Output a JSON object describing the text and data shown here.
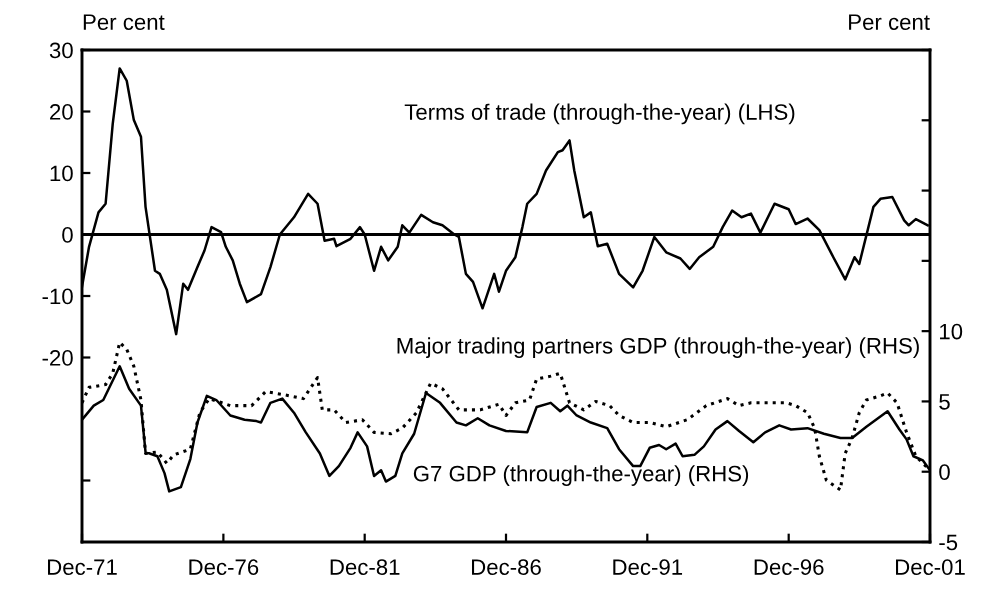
{
  "chart_data": {
    "type": "line",
    "ylabel": "Per cent",
    "y2label": "Per cent",
    "xlim": [
      "1971-12",
      "2001-12"
    ],
    "xticks": [
      {
        "value": "1971-12",
        "label": "Dec-71"
      },
      {
        "value": "1976-12",
        "label": "Dec-76"
      },
      {
        "value": "1981-12",
        "label": "Dec-81"
      },
      {
        "value": "1986-12",
        "label": "Dec-86"
      },
      {
        "value": "1991-12",
        "label": "Dec-91"
      },
      {
        "value": "1996-12",
        "label": "Dec-96"
      },
      {
        "value": "2001-12",
        "label": "Dec-01"
      }
    ],
    "ylim": [
      -50,
      30
    ],
    "yticks": [
      30,
      20,
      10,
      0,
      -10,
      -20,
      {
        "value": -40,
        "label": null
      }
    ],
    "y2lim": [
      -5,
      30
    ],
    "y2ticks": [
      {
        "value": 30,
        "label": null
      },
      {
        "value": 25,
        "label": null
      },
      {
        "value": 20,
        "label": null
      },
      {
        "value": 15,
        "label": null
      },
      10,
      5,
      0,
      -5
    ],
    "ref_lines": [
      {
        "axis": "y",
        "value": 0,
        "color": "#000000"
      }
    ],
    "legend": false,
    "grid": false,
    "series": [
      {
        "name": "Terms of trade (through-the-year) (LHS)",
        "color": "#000000",
        "line_style": "solid",
        "x": [
          "1971-12",
          "1972-03",
          "1972-07",
          "1972-10",
          "1973-01",
          "1973-04",
          "1973-07",
          "1973-10",
          "1974-01",
          "1974-03",
          "1974-07",
          "1974-09",
          "1974-12",
          "1975-04",
          "1975-07",
          "1975-09",
          "1976-01",
          "1976-04",
          "1976-07",
          "1976-11",
          "1977-01",
          "1977-04",
          "1977-07",
          "1977-10",
          "1978-04",
          "1978-08",
          "1978-12",
          "1979-06",
          "1979-12",
          "1980-04",
          "1980-07",
          "1980-11",
          "1980-12",
          "1981-06",
          "1981-10",
          "1981-12",
          "1982-04",
          "1982-07",
          "1982-10",
          "1983-02",
          "1983-04",
          "1983-07",
          "1983-12",
          "1984-05",
          "1984-09",
          "1985-02",
          "1985-04",
          "1985-07",
          "1985-10",
          "1986-02",
          "1986-07",
          "1986-09",
          "1986-12",
          "1987-04",
          "1987-07",
          "1987-09",
          "1988-01",
          "1988-05",
          "1988-10",
          "1988-12",
          "1989-03",
          "1989-05",
          "1989-09",
          "1989-12",
          "1990-03",
          "1990-07",
          "1990-12",
          "1991-06",
          "1991-10",
          "1992-03",
          "1992-08",
          "1993-02",
          "1993-06",
          "1993-10",
          "1994-04",
          "1994-08",
          "1994-12",
          "1995-04",
          "1995-08",
          "1995-12",
          "1996-06",
          "1996-12",
          "1997-03",
          "1997-08",
          "1998-01",
          "1998-07",
          "1998-12",
          "1999-04",
          "1999-06",
          "1999-12",
          "2000-03",
          "2000-08",
          "2001-01",
          "2001-03",
          "2001-06",
          "2001-11"
        ],
        "values": [
          -8.5,
          -2,
          3.6,
          5,
          18,
          27,
          25,
          18.6,
          15.9,
          4.5,
          -5.9,
          -6.4,
          -9,
          -16.2,
          -8,
          -9,
          -5.3,
          -2.6,
          1.2,
          0.4,
          -2,
          -4.2,
          -8,
          -11,
          -9.7,
          -5.3,
          0,
          2.8,
          6.6,
          5,
          -1,
          -0.7,
          -1.9,
          -0.7,
          1.2,
          0,
          -5.9,
          -2,
          -4.2,
          -2,
          1.5,
          0.3,
          3.2,
          2,
          1.5,
          0,
          -0.4,
          -6.4,
          -7.7,
          -12,
          -6.4,
          -9.3,
          -5.9,
          -3.7,
          1.2,
          5,
          6.6,
          10.4,
          13.4,
          13.7,
          15.3,
          10.4,
          2.8,
          3.6,
          -1.9,
          -1.5,
          -6.4,
          -8.6,
          -5.9,
          -0.4,
          -2.9,
          -3.9,
          -5.6,
          -3.7,
          -2,
          1.2,
          3.9,
          2.8,
          3.4,
          0.3,
          5,
          4.1,
          1.7,
          2.6,
          0.7,
          -3.7,
          -7.3,
          -3.7,
          -4.8,
          4.5,
          5.8,
          6.1,
          2.3,
          1.5,
          2.5,
          1.5
        ]
      },
      {
        "name": "Major trading partners GDP (through-the-year) (RHS)",
        "color": "#000000",
        "line_style": "dotted",
        "axis": "y2",
        "x": [
          "1971-12",
          "1972-03",
          "1972-10",
          "1973-01",
          "1973-04",
          "1973-07",
          "1973-10",
          "1974-01",
          "1974-03",
          "1974-08",
          "1974-12",
          "1975-03",
          "1975-10",
          "1976-02",
          "1976-06",
          "1977-03",
          "1977-12",
          "1978-06",
          "1979-01",
          "1979-10",
          "1980-04",
          "1980-06",
          "1980-11",
          "1981-04",
          "1981-11",
          "1982-04",
          "1982-11",
          "1983-04",
          "1983-10",
          "1984-04",
          "1984-09",
          "1985-04",
          "1986-01",
          "1986-09",
          "1986-12",
          "1987-04",
          "1987-10",
          "1988-01",
          "1988-07",
          "1988-11",
          "1989-03",
          "1989-09",
          "1990-02",
          "1990-08",
          "1990-12",
          "1991-06",
          "1992-01",
          "1992-08",
          "1993-05",
          "1994-01",
          "1994-10",
          "1995-03",
          "1995-08",
          "1996-03",
          "1996-11",
          "1997-03",
          "1997-08",
          "1997-11",
          "1998-01",
          "1998-04",
          "1998-10",
          "1998-12",
          "1999-03",
          "1999-06",
          "1999-09",
          "2000-03",
          "2000-06",
          "2000-10",
          "2001-02",
          "2001-06",
          "2001-12"
        ],
        "values": [
          4.9,
          6,
          6.2,
          7,
          9.2,
          8.7,
          7.5,
          5.1,
          1.3,
          1.4,
          0.6,
          1.2,
          1.6,
          4.2,
          5.2,
          4.7,
          4.7,
          5.7,
          5.5,
          5.2,
          6.7,
          4.4,
          4.4,
          3.5,
          3.7,
          2.8,
          2.7,
          3.1,
          4.2,
          6.3,
          5.9,
          4.4,
          4.4,
          4.8,
          4,
          4.9,
          5.1,
          6.6,
          6.8,
          7,
          4.9,
          4.4,
          5,
          4.7,
          4,
          3.5,
          3.5,
          3.2,
          3.7,
          4.7,
          5.2,
          4.7,
          4.9,
          4.9,
          4.9,
          4.7,
          4.2,
          3.1,
          1.1,
          -0.6,
          -1.3,
          1.3,
          2.4,
          4.2,
          5.1,
          5.4,
          5.6,
          4.9,
          2.8,
          1.1,
          0.1
        ]
      },
      {
        "name": "G7 GDP (through-the-year) (RHS)",
        "color": "#000000",
        "line_style": "solid",
        "axis": "y2",
        "x": [
          "1971-12",
          "1972-05",
          "1972-09",
          "1973-04",
          "1973-08",
          "1974-01",
          "1974-03",
          "1974-08",
          "1974-11",
          "1975-01",
          "1975-06",
          "1975-10",
          "1976-01",
          "1976-05",
          "1976-09",
          "1977-03",
          "1977-09",
          "1978-02",
          "1978-04",
          "1978-08",
          "1979-01",
          "1979-06",
          "1979-11",
          "1980-05",
          "1980-09",
          "1981-01",
          "1981-06",
          "1981-09",
          "1982-01",
          "1982-04",
          "1982-07",
          "1982-09",
          "1983-01",
          "1983-04",
          "1983-09",
          "1984-02",
          "1984-08",
          "1985-03",
          "1985-07",
          "1985-12",
          "1986-05",
          "1986-12",
          "1987-09",
          "1988-01",
          "1988-07",
          "1988-11",
          "1989-02",
          "1989-06",
          "1989-12",
          "1990-07",
          "1990-12",
          "1991-06",
          "1991-09",
          "1992-01",
          "1992-05",
          "1992-08",
          "1992-12",
          "1993-03",
          "1993-08",
          "1993-12",
          "1994-05",
          "1994-10",
          "1995-03",
          "1995-09",
          "1996-02",
          "1996-08",
          "1997-01",
          "1997-08",
          "1998-03",
          "1998-10",
          "1999-03",
          "1999-09",
          "2000-06",
          "2000-11",
          "2001-02",
          "2001-05",
          "2001-09",
          "2001-12"
        ],
        "values": [
          3.7,
          4.7,
          5.1,
          7.5,
          5.9,
          4.7,
          1.4,
          1.1,
          -0.1,
          -1.4,
          -1.1,
          0.9,
          3.5,
          5.4,
          5.1,
          4,
          3.7,
          3.6,
          3.5,
          4.9,
          5.2,
          4.2,
          2.8,
          1.3,
          -0.3,
          0.4,
          1.7,
          2.8,
          1.8,
          -0.3,
          0.1,
          -0.7,
          -0.3,
          1.3,
          2.7,
          5.6,
          4.9,
          3.5,
          3.3,
          3.8,
          3.3,
          2.9,
          2.8,
          4.6,
          4.9,
          4.3,
          4.7,
          4,
          3.5,
          3.1,
          1.6,
          0.4,
          0.4,
          1.7,
          1.9,
          1.6,
          2,
          1.1,
          1.2,
          1.8,
          3,
          3.6,
          2.9,
          2.1,
          2.8,
          3.3,
          3,
          3.1,
          2.7,
          2.4,
          2.4,
          3.2,
          4.3,
          3,
          2.3,
          1.1,
          0.8,
          0.1
        ]
      }
    ]
  }
}
